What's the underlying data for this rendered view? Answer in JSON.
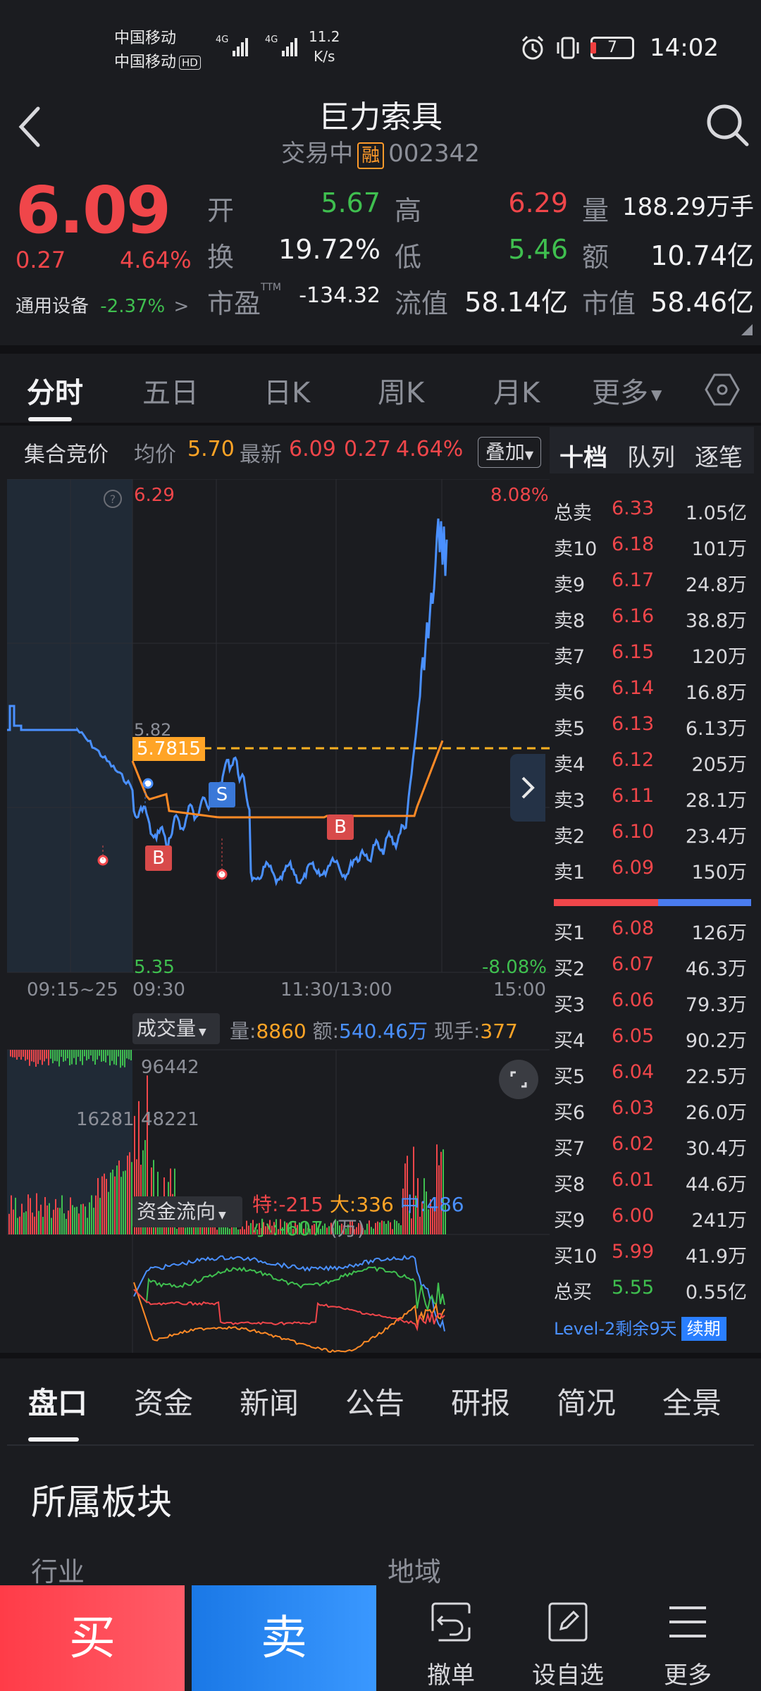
{
  "status_bar": {
    "carrier1": "中国移动",
    "carrier2": "中国移动",
    "hd": "HD",
    "net": "4G",
    "speed_value": "11.2",
    "speed_unit": "K/s",
    "battery": "7",
    "time": "14:02"
  },
  "header": {
    "title": "巨力索具",
    "trading_status": "交易中",
    "margin_badge": "融",
    "code": "002342"
  },
  "quote": {
    "price": "6.09",
    "change": "0.27",
    "change_pct": "4.64%",
    "sector_name": "通用设备",
    "sector_change": "-2.37%",
    "fields": [
      {
        "label": "开",
        "value": "5.67"
      },
      {
        "label": "高",
        "value": "6.29"
      },
      {
        "label": "量",
        "value": "188.29万手"
      },
      {
        "label": "换",
        "value": "19.72%"
      },
      {
        "label": "低",
        "value": "5.46"
      },
      {
        "label": "额",
        "value": "10.74亿"
      },
      {
        "label": "市盈",
        "sup": "TTM",
        "value": "-134.32"
      },
      {
        "label": "流值",
        "value": "58.14亿"
      },
      {
        "label": "市值",
        "value": "58.46亿"
      }
    ]
  },
  "tabs": [
    "分时",
    "五日",
    "日K",
    "周K",
    "月K",
    "更多"
  ],
  "chart_header": {
    "auction": "集合竞价",
    "avg_label": "均价",
    "avg_value": "5.70",
    "latest_label": "最新",
    "latest_value": "6.09",
    "change": "0.27",
    "change_pct": "4.64%",
    "overlay": "叠加"
  },
  "chart_labels": {
    "y_top": "6.29",
    "y_top_pct": "8.08%",
    "y_mid": "5.82",
    "y_bottom": "5.35",
    "y_bottom_pct": "-8.08%",
    "ref_line": "5.7815",
    "help": "?",
    "x_ticks": [
      "09:15~25",
      "09:30",
      "11:30/13:00",
      "15:00"
    ],
    "marker_b": "B",
    "marker_s": "S"
  },
  "volume_header": {
    "selector": "成交量",
    "vol_label": "量:",
    "vol_value": "8860",
    "amt_label": "额:",
    "amt_value": "540.46万",
    "hand_label": "现手:",
    "hand_value": "377",
    "max_label": "96442",
    "mid_label": "48221",
    "auction_vol": "16281"
  },
  "fund_flow": {
    "selector": "资金流向",
    "special_label": "特:",
    "special_value": "-215",
    "large_label": "大:",
    "large_value": "336",
    "medium_label": "中:",
    "medium_value": "486",
    "small_label": "小:",
    "small_value": "-607",
    "unit": "(万)"
  },
  "order_book": {
    "tabs": [
      "十档",
      "队列",
      "逐笔"
    ],
    "total_sell": {
      "label": "总卖",
      "price": "6.33",
      "volume": "1.05亿"
    },
    "asks": [
      {
        "label": "卖10",
        "price": "6.18",
        "volume": "101万"
      },
      {
        "label": "卖9",
        "price": "6.17",
        "volume": "24.8万"
      },
      {
        "label": "卖8",
        "price": "6.16",
        "volume": "38.8万"
      },
      {
        "label": "卖7",
        "price": "6.15",
        "volume": "120万"
      },
      {
        "label": "卖6",
        "price": "6.14",
        "volume": "16.8万"
      },
      {
        "label": "卖5",
        "price": "6.13",
        "volume": "6.13万"
      },
      {
        "label": "卖4",
        "price": "6.12",
        "volume": "205万"
      },
      {
        "label": "卖3",
        "price": "6.11",
        "volume": "28.1万"
      },
      {
        "label": "卖2",
        "price": "6.10",
        "volume": "23.4万"
      },
      {
        "label": "卖1",
        "price": "6.09",
        "volume": "150万"
      }
    ],
    "bids": [
      {
        "label": "买1",
        "price": "6.08",
        "volume": "126万"
      },
      {
        "label": "买2",
        "price": "6.07",
        "volume": "46.3万"
      },
      {
        "label": "买3",
        "price": "6.06",
        "volume": "79.3万"
      },
      {
        "label": "买4",
        "price": "6.05",
        "volume": "90.2万"
      },
      {
        "label": "买5",
        "price": "6.04",
        "volume": "22.5万"
      },
      {
        "label": "买6",
        "price": "6.03",
        "volume": "26.0万"
      },
      {
        "label": "买7",
        "price": "6.02",
        "volume": "30.4万"
      },
      {
        "label": "买8",
        "price": "6.01",
        "volume": "44.6万"
      },
      {
        "label": "买9",
        "price": "6.00",
        "volume": "241万"
      },
      {
        "label": "买10",
        "price": "5.99",
        "volume": "41.9万"
      }
    ],
    "total_buy": {
      "label": "总买",
      "price": "5.55",
      "volume": "0.55亿"
    },
    "level2": "Level-2剩余9天",
    "renew": "续期"
  },
  "bottom_tabs": [
    "盘口",
    "资金",
    "新闻",
    "公告",
    "研报",
    "简况",
    "全景"
  ],
  "section": {
    "title": "所属板块",
    "industry": "行业",
    "region": "地域"
  },
  "actions": {
    "buy": "买",
    "sell": "卖",
    "cancel": "撤单",
    "watchlist": "设自选",
    "more": "更多"
  },
  "colors": {
    "up": "#f0464a",
    "down": "#3fbf4f",
    "price_line": "#4a90ff",
    "avg_line": "#ff8a26",
    "ref_line": "#ffb020",
    "buy": "#ff3c48",
    "sell": "#1a78e6"
  }
}
